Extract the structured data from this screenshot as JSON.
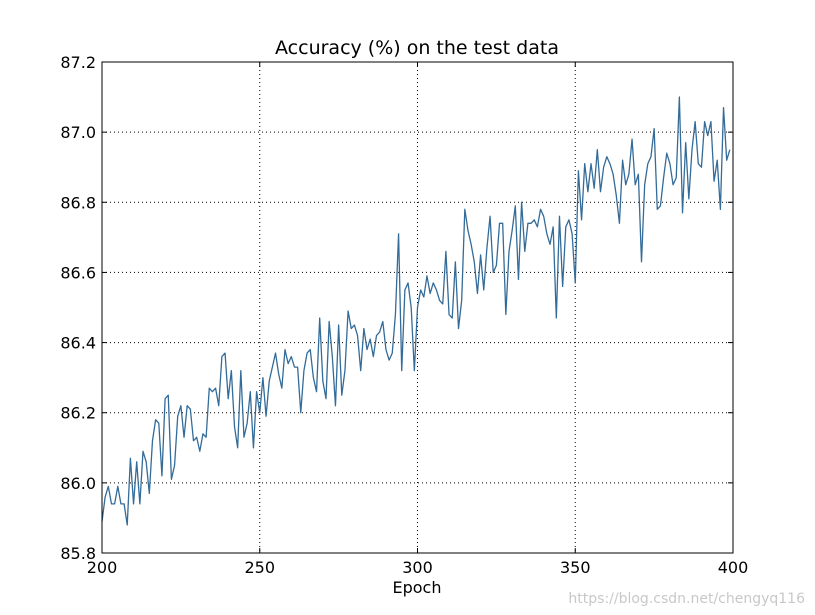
{
  "chart_data": {
    "type": "line",
    "title": "Accuracy (%) on the test data",
    "xlabel": "Epoch",
    "ylabel": "",
    "xlim": [
      200,
      400
    ],
    "ylim": [
      85.8,
      87.2
    ],
    "xticks": [
      200,
      250,
      300,
      350,
      400
    ],
    "yticks": [
      85.8,
      86.0,
      86.2,
      86.4,
      86.6,
      86.8,
      87.0,
      87.2
    ],
    "ytick_labels": [
      "85.8",
      "86.0",
      "86.2",
      "86.4",
      "86.6",
      "86.8",
      "87.0",
      "87.2"
    ],
    "grid": true,
    "line_color": "#336b99",
    "series": [
      {
        "x_start": 200,
        "x_step": 1,
        "values": [
          85.89,
          85.96,
          85.99,
          85.94,
          85.94,
          85.99,
          85.94,
          85.94,
          85.88,
          86.07,
          85.94,
          86.06,
          85.94,
          86.09,
          86.06,
          85.97,
          86.12,
          86.18,
          86.17,
          86.02,
          86.24,
          86.25,
          86.01,
          86.05,
          86.19,
          86.22,
          86.13,
          86.22,
          86.21,
          86.12,
          86.13,
          86.09,
          86.14,
          86.13,
          86.27,
          86.26,
          86.27,
          86.22,
          86.36,
          86.37,
          86.24,
          86.32,
          86.16,
          86.1,
          86.32,
          86.13,
          86.17,
          86.26,
          86.1,
          86.26,
          86.2,
          86.3,
          86.19,
          86.29,
          86.33,
          86.37,
          86.31,
          86.27,
          86.38,
          86.34,
          86.36,
          86.33,
          86.33,
          86.2,
          86.32,
          86.37,
          86.38,
          86.3,
          86.26,
          86.47,
          86.29,
          86.24,
          86.46,
          86.36,
          86.22,
          86.45,
          86.25,
          86.32,
          86.49,
          86.44,
          86.45,
          86.42,
          86.32,
          86.44,
          86.38,
          86.41,
          86.36,
          86.42,
          86.43,
          86.46,
          86.38,
          86.35,
          86.37,
          86.48,
          86.71,
          86.32,
          86.55,
          86.57,
          86.5,
          86.32,
          86.5,
          86.55,
          86.53,
          86.59,
          86.54,
          86.57,
          86.55,
          86.52,
          86.51,
          86.66,
          86.48,
          86.47,
          86.63,
          86.44,
          86.52,
          86.78,
          86.72,
          86.68,
          86.63,
          86.54,
          86.65,
          86.55,
          86.67,
          86.76,
          86.6,
          86.62,
          86.74,
          86.74,
          86.48,
          86.66,
          86.72,
          86.79,
          86.58,
          86.8,
          86.66,
          86.74,
          86.74,
          86.75,
          86.73,
          86.78,
          86.76,
          86.71,
          86.68,
          86.73,
          86.47,
          86.76,
          86.56,
          86.73,
          86.75,
          86.71,
          86.57,
          86.89,
          86.75,
          86.91,
          86.83,
          86.91,
          86.84,
          86.95,
          86.83,
          86.9,
          86.93,
          86.91,
          86.88,
          86.82,
          86.74,
          86.92,
          86.85,
          86.88,
          86.98,
          86.85,
          86.88,
          86.63,
          86.85,
          86.91,
          86.93,
          87.01,
          86.78,
          86.79,
          86.87,
          86.94,
          86.91,
          86.85,
          86.87,
          87.1,
          86.77,
          86.97,
          86.81,
          86.95,
          87.03,
          86.91,
          86.9,
          87.03,
          86.99,
          87.03,
          86.86,
          86.92,
          86.78,
          87.07,
          86.92,
          86.95
        ]
      }
    ]
  },
  "watermark": "https://blog.csdn.net/chengyq116"
}
